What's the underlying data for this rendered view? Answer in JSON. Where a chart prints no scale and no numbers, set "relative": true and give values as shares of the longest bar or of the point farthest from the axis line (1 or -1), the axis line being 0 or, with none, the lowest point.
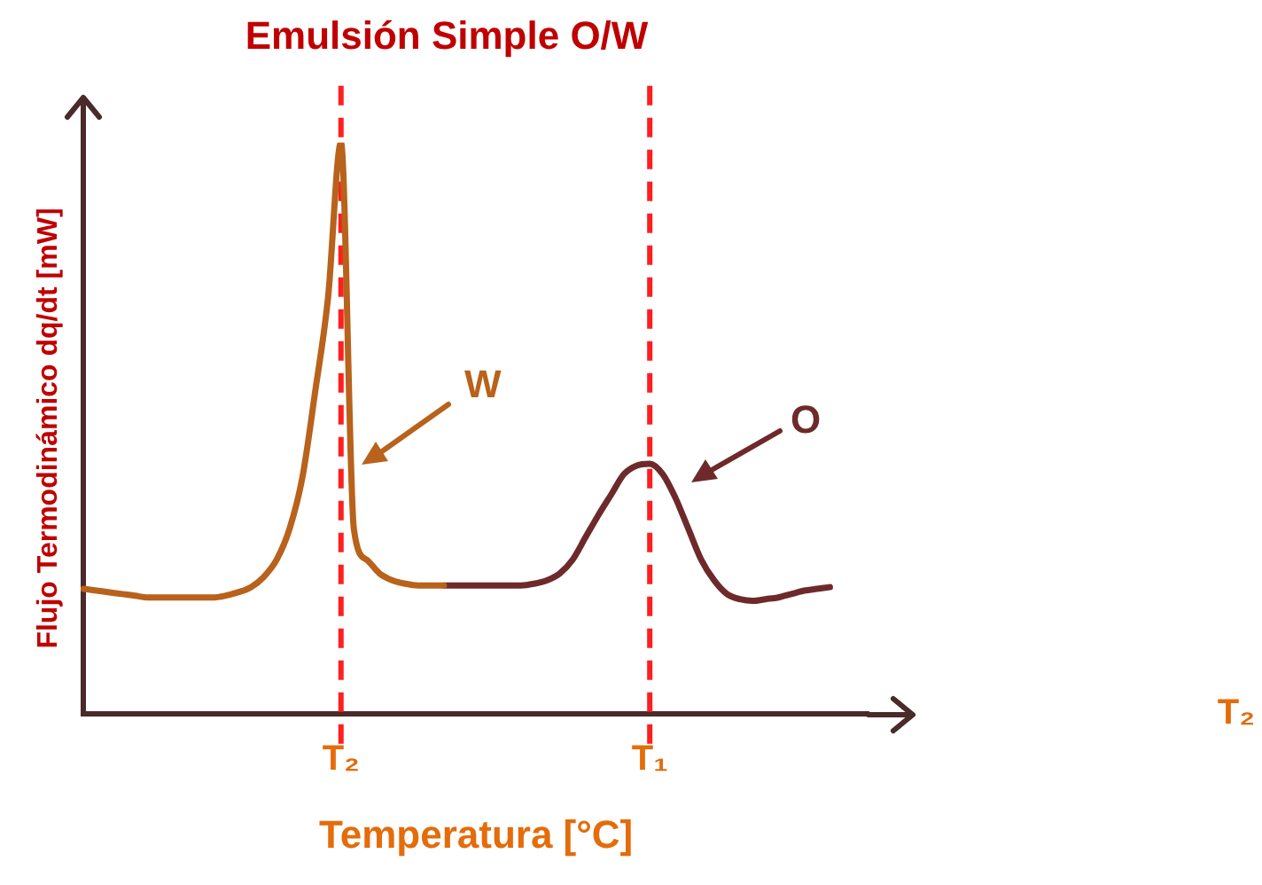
{
  "chart_data": {
    "type": "line",
    "title": "Emulsión Simple O/W",
    "xlabel": "Temperatura [°C]",
    "ylabel": "Flujo Termodinámico dq/dt [mW]",
    "relative": true,
    "legend": false,
    "grid": false,
    "marker": "none",
    "categories": [
      null,
      null,
      null,
      null,
      null,
      null,
      null,
      null,
      null,
      null,
      null,
      null,
      null,
      null,
      null,
      null,
      null,
      null,
      null,
      null,
      "T₂",
      null,
      null,
      null,
      null,
      null,
      null,
      null,
      null,
      null,
      null,
      null,
      null,
      null,
      null,
      null,
      null,
      null,
      null,
      null,
      null,
      null,
      null,
      null,
      "T₁",
      null,
      null,
      null,
      null,
      null,
      null,
      null,
      null,
      null,
      null,
      null,
      null,
      null,
      null,
      null,
      null,
      null
    ],
    "series": [
      {
        "color": "#b8621b",
        "values": [
          0.219,
          0.216,
          0.213,
          0.21,
          0.207,
          0.204,
          0.204,
          0.204,
          0.204,
          0.204,
          0.204,
          0.207,
          0.213,
          0.222,
          0.24,
          0.27,
          0.324,
          0.414,
          0.565,
          0.73,
          1,
          0.324,
          0.27,
          0.246,
          0.234,
          0.228,
          0.225,
          0.225,
          0.225,
          null,
          null,
          null,
          null,
          null,
          null,
          null,
          null,
          null,
          null,
          null,
          null,
          null,
          null,
          null,
          null,
          null,
          null,
          null,
          null,
          null,
          null,
          null,
          null,
          null,
          null,
          null,
          null,
          null,
          null,
          null,
          null,
          null
        ]
      },
      {
        "color": "#6e2a2a",
        "values": [
          null,
          null,
          null,
          null,
          null,
          null,
          null,
          null,
          null,
          null,
          null,
          null,
          null,
          null,
          null,
          null,
          null,
          null,
          null,
          null,
          null,
          null,
          null,
          null,
          null,
          null,
          null,
          null,
          0.225,
          0.225,
          0.225,
          0.225,
          0.225,
          0.225,
          0.225,
          0.228,
          0.234,
          0.246,
          0.27,
          0.309,
          0.348,
          0.384,
          0.42,
          0.435,
          0.438,
          0.42,
          0.378,
          0.324,
          0.27,
          0.234,
          0.21,
          0.201,
          0.198,
          0.201,
          0.204,
          0.21,
          0.216,
          0.219,
          0.222,
          null,
          null,
          null
        ]
      }
    ],
    "ref_lines": [
      {
        "axis": "x",
        "value": "T₂",
        "color": "#ff1f1f",
        "line_style": "dashed"
      },
      {
        "axis": "x",
        "value": "T₁",
        "color": "#ff1f1f",
        "line_style": "dashed"
      }
    ],
    "annotations": [
      "W",
      "O",
      "T₂"
    ]
  }
}
